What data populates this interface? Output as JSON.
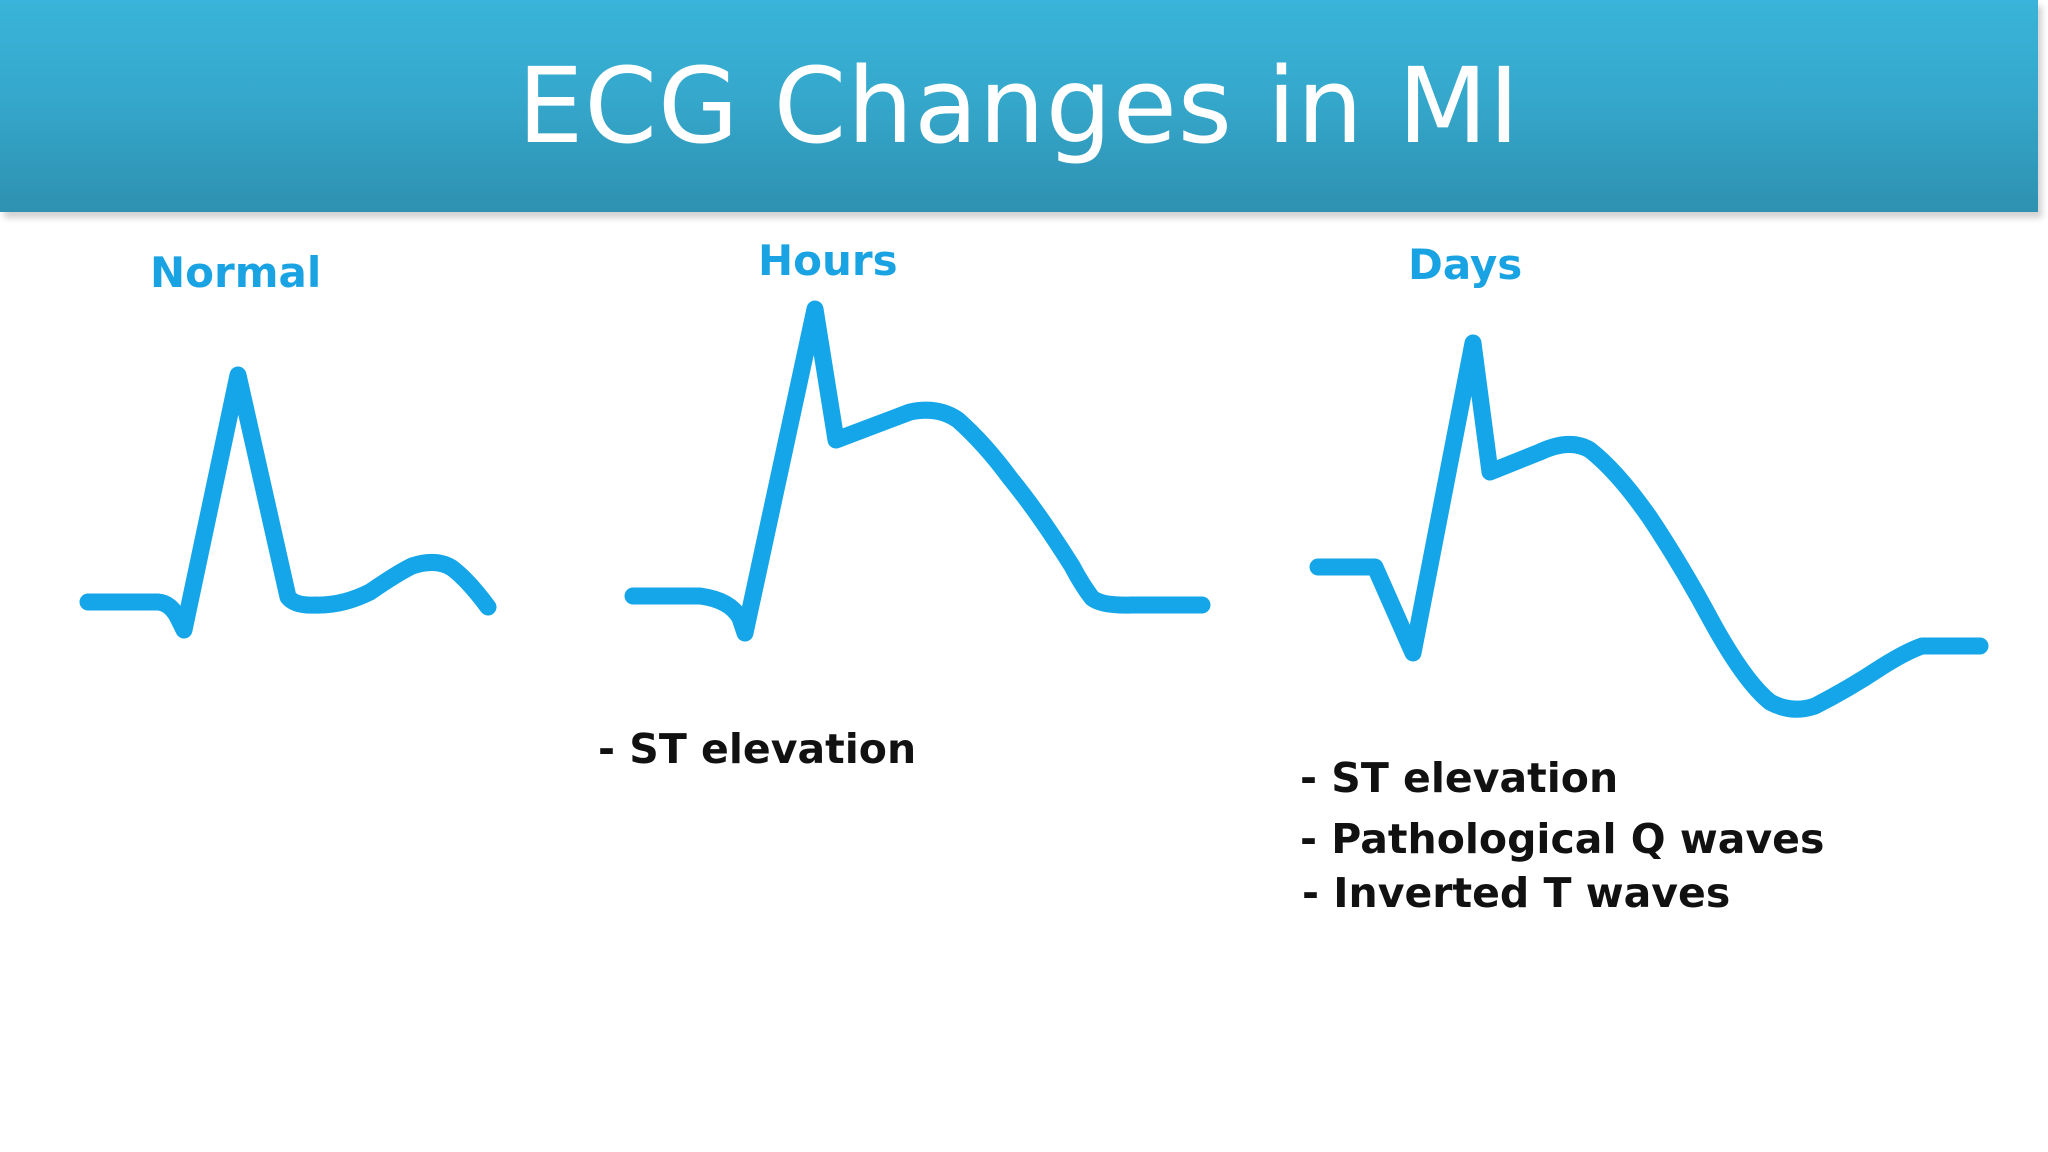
{
  "title": "ECG Changes in MI",
  "stages": [
    {
      "label": "Normal",
      "findings": []
    },
    {
      "label": "Hours",
      "findings": [
        "- ST elevation"
      ]
    },
    {
      "label": "Days",
      "findings": [
        "- ST elevation",
        "- Pathological Q waves",
        "- Inverted T waves"
      ]
    }
  ],
  "colors": {
    "header": "#35a8cc",
    "trace": "#14a6e8",
    "label": "#1aa3e3",
    "text": "#111111"
  }
}
